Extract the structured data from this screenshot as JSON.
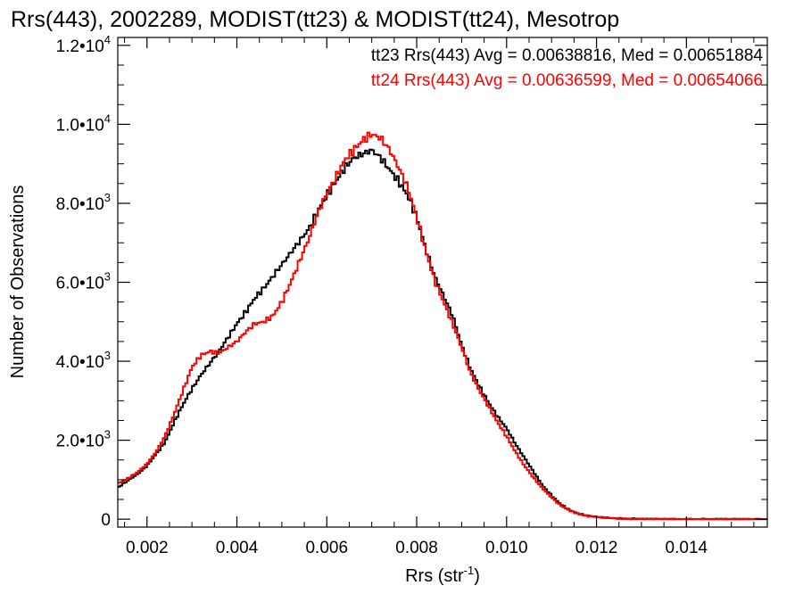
{
  "chart_data": {
    "type": "line",
    "title": "Rrs(443), 2002289, MODIST(tt23) & MODIST(tt24), Mesotrop",
    "xlabel": "Rrs (str",
    "xlabel_sup": "-1",
    "xlabel_close": ")",
    "ylabel": "Number of Observations",
    "xlim": [
      0.00135,
      0.0158
    ],
    "ylim": [
      -200,
      12200
    ],
    "x_ticks": [
      {
        "v": 0.002,
        "label": "0.002"
      },
      {
        "v": 0.004,
        "label": "0.004"
      },
      {
        "v": 0.006,
        "label": "0.006"
      },
      {
        "v": 0.008,
        "label": "0.008"
      },
      {
        "v": 0.01,
        "label": "0.010"
      },
      {
        "v": 0.012,
        "label": "0.012"
      },
      {
        "v": 0.014,
        "label": "0.014"
      }
    ],
    "y_ticks": [
      {
        "v": 0,
        "mant": "0",
        "exp": ""
      },
      {
        "v": 2000,
        "mant": "2.0•10",
        "exp": "3"
      },
      {
        "v": 4000,
        "mant": "4.0•10",
        "exp": "3"
      },
      {
        "v": 6000,
        "mant": "6.0•10",
        "exp": "3"
      },
      {
        "v": 8000,
        "mant": "8.0•10",
        "exp": "3"
      },
      {
        "v": 10000,
        "mant": "1.0•10",
        "exp": "4"
      },
      {
        "v": 12000,
        "mant": "1.2•10",
        "exp": "4"
      }
    ],
    "legend_position": "top-right",
    "series": [
      {
        "name": "tt23 Rrs(443) Avg = 0.00638816, Med = 0.00651884",
        "color": "#000000",
        "points": [
          [
            0.00135,
            800
          ],
          [
            0.0016,
            1000
          ],
          [
            0.0018,
            1150
          ],
          [
            0.002,
            1350
          ],
          [
            0.0022,
            1650
          ],
          [
            0.0024,
            1950
          ],
          [
            0.0026,
            2450
          ],
          [
            0.0028,
            2900
          ],
          [
            0.003,
            3300
          ],
          [
            0.0032,
            3650
          ],
          [
            0.0034,
            3950
          ],
          [
            0.0036,
            4250
          ],
          [
            0.0038,
            4600
          ],
          [
            0.004,
            4950
          ],
          [
            0.0042,
            5250
          ],
          [
            0.0044,
            5600
          ],
          [
            0.0046,
            5850
          ],
          [
            0.0048,
            6150
          ],
          [
            0.005,
            6450
          ],
          [
            0.0052,
            6750
          ],
          [
            0.0054,
            7050
          ],
          [
            0.0056,
            7350
          ],
          [
            0.0058,
            7800
          ],
          [
            0.006,
            8200
          ],
          [
            0.0062,
            8550
          ],
          [
            0.0064,
            8900
          ],
          [
            0.0066,
            9150
          ],
          [
            0.0068,
            9250
          ],
          [
            0.007,
            9350
          ],
          [
            0.0072,
            9150
          ],
          [
            0.0074,
            8850
          ],
          [
            0.0076,
            8550
          ],
          [
            0.0078,
            8200
          ],
          [
            0.008,
            7650
          ],
          [
            0.0082,
            6850
          ],
          [
            0.0084,
            6150
          ],
          [
            0.0086,
            5650
          ],
          [
            0.0088,
            5150
          ],
          [
            0.009,
            4400
          ],
          [
            0.0092,
            3800
          ],
          [
            0.0094,
            3350
          ],
          [
            0.0096,
            2950
          ],
          [
            0.0098,
            2600
          ],
          [
            0.01,
            2300
          ],
          [
            0.0102,
            1900
          ],
          [
            0.0104,
            1550
          ],
          [
            0.0106,
            1200
          ],
          [
            0.0108,
            850
          ],
          [
            0.011,
            600
          ],
          [
            0.0112,
            380
          ],
          [
            0.0114,
            230
          ],
          [
            0.0116,
            140
          ],
          [
            0.0118,
            90
          ],
          [
            0.012,
            60
          ],
          [
            0.0122,
            40
          ],
          [
            0.0124,
            25
          ],
          [
            0.0126,
            15
          ],
          [
            0.0128,
            10
          ],
          [
            0.013,
            5
          ],
          [
            0.0135,
            2
          ],
          [
            0.014,
            1
          ],
          [
            0.015,
            0
          ],
          [
            0.0158,
            0
          ]
        ]
      },
      {
        "name": "tt24 Rrs(443) Avg = 0.00636599, Med = 0.00654066",
        "color": "#ff0000",
        "points": [
          [
            0.00135,
            900
          ],
          [
            0.0016,
            1050
          ],
          [
            0.0018,
            1200
          ],
          [
            0.002,
            1400
          ],
          [
            0.0022,
            1700
          ],
          [
            0.0024,
            2100
          ],
          [
            0.0026,
            2650
          ],
          [
            0.0028,
            3250
          ],
          [
            0.003,
            3850
          ],
          [
            0.0032,
            4150
          ],
          [
            0.0034,
            4250
          ],
          [
            0.0036,
            4200
          ],
          [
            0.0038,
            4350
          ],
          [
            0.004,
            4500
          ],
          [
            0.0042,
            4750
          ],
          [
            0.0044,
            4950
          ],
          [
            0.0046,
            5000
          ],
          [
            0.0048,
            5150
          ],
          [
            0.005,
            5500
          ],
          [
            0.0052,
            6000
          ],
          [
            0.0054,
            6550
          ],
          [
            0.0056,
            7100
          ],
          [
            0.0058,
            7750
          ],
          [
            0.006,
            8250
          ],
          [
            0.0062,
            8650
          ],
          [
            0.0064,
            9100
          ],
          [
            0.0066,
            9350
          ],
          [
            0.0068,
            9600
          ],
          [
            0.007,
            9750
          ],
          [
            0.0072,
            9650
          ],
          [
            0.0074,
            9350
          ],
          [
            0.0076,
            8900
          ],
          [
            0.0078,
            8400
          ],
          [
            0.008,
            7650
          ],
          [
            0.0082,
            6800
          ],
          [
            0.0084,
            6050
          ],
          [
            0.0086,
            5500
          ],
          [
            0.0088,
            4950
          ],
          [
            0.009,
            4350
          ],
          [
            0.0092,
            3700
          ],
          [
            0.0094,
            3250
          ],
          [
            0.0096,
            2850
          ],
          [
            0.0098,
            2450
          ],
          [
            0.01,
            2100
          ],
          [
            0.0102,
            1700
          ],
          [
            0.0104,
            1350
          ],
          [
            0.0106,
            1050
          ],
          [
            0.0108,
            780
          ],
          [
            0.011,
            550
          ],
          [
            0.0112,
            350
          ],
          [
            0.0114,
            220
          ],
          [
            0.0116,
            130
          ],
          [
            0.0118,
            80
          ],
          [
            0.012,
            55
          ],
          [
            0.0122,
            35
          ],
          [
            0.0124,
            22
          ],
          [
            0.0126,
            14
          ],
          [
            0.0128,
            8
          ],
          [
            0.013,
            4
          ],
          [
            0.0135,
            2
          ],
          [
            0.014,
            1
          ],
          [
            0.015,
            0
          ],
          [
            0.0158,
            0
          ]
        ]
      }
    ]
  }
}
